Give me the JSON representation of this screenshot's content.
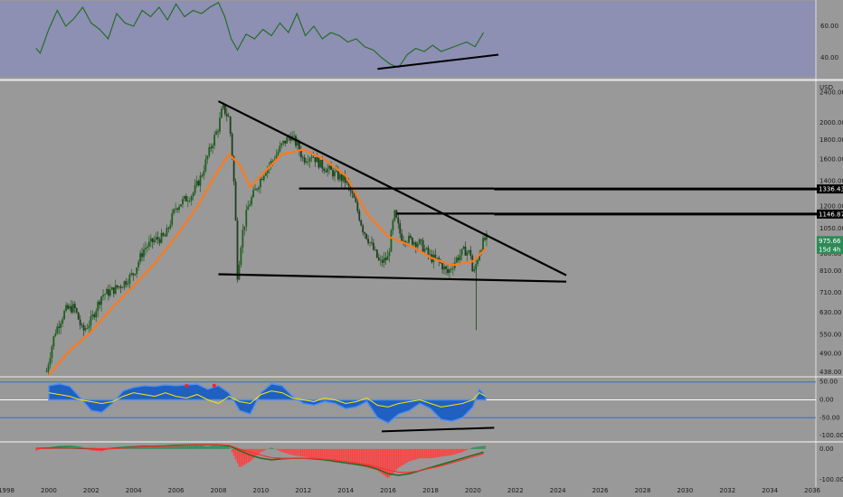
{
  "chart_data": [
    {
      "type": "line",
      "panel": "rsi",
      "y_ticks": [
        "60.00",
        "40.00"
      ],
      "ylim": [
        28,
        76
      ],
      "line_color": "#1f6b1f",
      "background": "#8d8fb3",
      "series": [
        {
          "x": [
            1999.4,
            1999.6,
            2000.0,
            2000.4,
            2000.8,
            2001.2,
            2001.6,
            2002.0,
            2002.4,
            2002.8,
            2003.2,
            2003.6,
            2004.0,
            2004.4,
            2004.8,
            2005.2,
            2005.6,
            2006.0,
            2006.4,
            2006.8,
            2007.2,
            2007.6,
            2008.0,
            2008.3,
            2008.6,
            2008.9,
            2009.3,
            2009.7,
            2010.1,
            2010.5,
            2010.9,
            2011.3,
            2011.7,
            2012.1,
            2012.5,
            2012.9,
            2013.3,
            2013.7,
            2014.1,
            2014.5,
            2014.9,
            2015.3,
            2015.7,
            2016.1,
            2016.5,
            2016.9,
            2017.3,
            2017.7,
            2018.1,
            2018.5,
            2018.9,
            2019.3,
            2019.7,
            2020.1,
            2020.5
          ],
          "y": [
            46,
            43,
            58,
            70,
            60,
            65,
            72,
            62,
            58,
            52,
            68,
            62,
            60,
            70,
            66,
            72,
            64,
            74,
            66,
            70,
            68,
            72,
            75,
            66,
            52,
            45,
            55,
            52,
            58,
            54,
            62,
            56,
            68,
            54,
            60,
            52,
            56,
            54,
            50,
            52,
            47,
            45,
            40,
            36,
            34,
            42,
            46,
            44,
            48,
            44,
            46,
            48,
            50,
            47,
            56
          ]
        }
      ],
      "trendline": {
        "x": [
          2015.5,
          2021.2
        ],
        "y": [
          33,
          42
        ]
      }
    },
    {
      "type": "candlestick",
      "panel": "price",
      "currency": "USD",
      "y_ticks": [
        "2400.00",
        "2000.00",
        "1800.00",
        "1600.00",
        "1400.00",
        "1200.00",
        "1050.00",
        "900.00",
        "810.00",
        "710.00",
        "630.00",
        "550.00",
        "490.00",
        "438.00"
      ],
      "log_scale": true,
      "ylim": [
        428,
        2560
      ],
      "price_labels": [
        {
          "text": "1336.43",
          "value": 1336.43,
          "bg": "#000000",
          "fg": "#ffffff"
        },
        {
          "text": "1146.87",
          "value": 1146.87,
          "bg": "#000000",
          "fg": "#ffffff"
        },
        {
          "text": "975.66",
          "value": 975.66,
          "bg": "#2e8b57",
          "fg": "#ffffff"
        },
        {
          "text": "15d 4h",
          "value": 925,
          "bg": "#2e8b57",
          "fg": "#ffffff"
        }
      ],
      "moving_average_color": "#ff7a1a",
      "up_color": "#1f5f1f",
      "down_color": "#1f3f1f",
      "close_anchors": {
        "x": [
          1999.9,
          2000.3,
          2000.8,
          2001.2,
          2001.6,
          2002.0,
          2002.5,
          2003.0,
          2003.5,
          2004.0,
          2004.5,
          2005.0,
          2005.5,
          2006.0,
          2006.4,
          2006.8,
          2007.2,
          2007.6,
          2008.0,
          2008.2,
          2008.5,
          2008.7,
          2008.9,
          2009.1,
          2009.4,
          2009.8,
          2010.2,
          2010.6,
          2011.0,
          2011.4,
          2011.7,
          2012.0,
          2012.4,
          2012.8,
          2013.2,
          2013.6,
          2014.0,
          2014.4,
          2014.8,
          2015.2,
          2015.6,
          2016.0,
          2016.3,
          2016.6,
          2017.0,
          2017.5,
          2018.0,
          2018.4,
          2018.8,
          2019.2,
          2019.6,
          2019.9,
          2020.0,
          2020.2,
          2020.4,
          2020.6
        ],
        "y": [
          440,
          560,
          640,
          650,
          560,
          600,
          700,
          720,
          750,
          800,
          930,
          980,
          1000,
          1200,
          1250,
          1300,
          1450,
          1700,
          1950,
          2200,
          2050,
          1500,
          780,
          1000,
          1200,
          1350,
          1500,
          1600,
          1750,
          1850,
          1750,
          1600,
          1650,
          1550,
          1500,
          1450,
          1400,
          1250,
          1050,
          950,
          850,
          880,
          1150,
          1000,
          980,
          960,
          880,
          860,
          800,
          870,
          920,
          900,
          780,
          870,
          950,
          990
        ]
      },
      "moving_average": {
        "x": [
          2000.0,
          2001.0,
          2002.0,
          2003.0,
          2004.0,
          2005.0,
          2006.0,
          2007.0,
          2008.0,
          2008.5,
          2009.0,
          2009.5,
          2010.0,
          2011.0,
          2012.0,
          2013.0,
          2014.0,
          2015.0,
          2016.0,
          2017.0,
          2018.0,
          2019.0,
          2020.0,
          2020.6
        ],
        "y": [
          430,
          500,
          560,
          650,
          740,
          850,
          1000,
          1200,
          1500,
          1650,
          1550,
          1350,
          1450,
          1650,
          1700,
          1600,
          1450,
          1150,
          1000,
          950,
          880,
          840,
          860,
          930
        ]
      },
      "trendlines": [
        {
          "x": [
            2008.0,
            2024.4
          ],
          "y": [
            2280,
            790
          ]
        },
        {
          "x": [
            2008.0,
            2024.4
          ],
          "y": [
            795,
            760
          ]
        },
        {
          "x": [
            2011.8,
            2021.0
          ],
          "y": [
            1340,
            1340
          ]
        },
        {
          "x": [
            2016.4,
            2021.0
          ],
          "y": [
            1150,
            1150
          ]
        }
      ],
      "horizontal_lines": [
        {
          "y": 1336.43,
          "x_start": 2021.0
        },
        {
          "y": 1146.87,
          "x_start": 2021.0
        }
      ]
    },
    {
      "type": "area",
      "panel": "oscillator",
      "y_ticks": [
        "50.00",
        "0.00",
        "-50.00",
        "-100.00"
      ],
      "ylim": [
        -115,
        62
      ],
      "fill_color": "#2060c0",
      "line_color": "#ffe600",
      "bands": [
        50,
        0,
        -50
      ],
      "x": [
        2000.0,
        2000.5,
        2001.0,
        2001.5,
        2002.0,
        2002.5,
        2003.0,
        2003.5,
        2004.0,
        2004.5,
        2005.0,
        2005.5,
        2006.0,
        2006.5,
        2007.0,
        2007.5,
        2008.0,
        2008.5,
        2009.0,
        2009.5,
        2010.0,
        2010.5,
        2011.0,
        2011.5,
        2012.0,
        2012.5,
        2013.0,
        2013.5,
        2014.0,
        2014.5,
        2015.0,
        2015.5,
        2016.0,
        2016.5,
        2017.0,
        2017.5,
        2018.0,
        2018.5,
        2019.0,
        2019.5,
        2020.0,
        2020.3,
        2020.6
      ],
      "histogram": [
        40,
        45,
        38,
        5,
        -30,
        -35,
        -10,
        25,
        35,
        40,
        38,
        42,
        40,
        42,
        44,
        30,
        40,
        20,
        -30,
        -40,
        20,
        45,
        40,
        10,
        -10,
        -15,
        -5,
        -10,
        -25,
        -20,
        -5,
        -50,
        -65,
        -40,
        -30,
        -10,
        -25,
        -55,
        -60,
        -50,
        -20,
        30,
        10
      ],
      "signal": [
        20,
        15,
        10,
        0,
        -5,
        -10,
        -5,
        10,
        20,
        15,
        10,
        20,
        10,
        5,
        15,
        0,
        -10,
        10,
        -5,
        -10,
        15,
        25,
        20,
        5,
        0,
        -5,
        5,
        0,
        -10,
        -5,
        5,
        -15,
        -20,
        -10,
        -5,
        0,
        -10,
        -20,
        -15,
        -10,
        0,
        20,
        10
      ],
      "markers": [
        {
          "x": 2006.5,
          "y": 40,
          "color": "#ff2020"
        },
        {
          "x": 2007.8,
          "y": 40,
          "color": "#ff2020"
        }
      ],
      "trendline": {
        "x": [
          2015.7,
          2021.0
        ],
        "y": [
          -88,
          -78
        ]
      }
    },
    {
      "type": "bar",
      "panel": "macd",
      "y_ticks": [
        "0.00",
        "-100.00"
      ],
      "ylim": [
        -120,
        20
      ],
      "up_color": "#2e8b57",
      "down_color": "#ff4040",
      "x": [
        1999.4,
        2000.0,
        2000.5,
        2001.0,
        2001.5,
        2002.0,
        2002.5,
        2003.0,
        2003.5,
        2004.0,
        2004.5,
        2005.0,
        2005.5,
        2006.0,
        2006.5,
        2007.0,
        2007.5,
        2008.0,
        2008.5,
        2009.0,
        2009.5,
        2010.0,
        2010.5,
        2011.0,
        2011.5,
        2012.0,
        2012.5,
        2013.0,
        2013.5,
        2014.0,
        2014.5,
        2015.0,
        2015.5,
        2016.0,
        2016.5,
        2017.0,
        2017.5,
        2018.0,
        2018.5,
        2019.0,
        2019.5,
        2020.0,
        2020.5
      ],
      "values": [
        -5,
        5,
        10,
        12,
        8,
        -5,
        -8,
        5,
        8,
        10,
        12,
        10,
        8,
        12,
        10,
        14,
        8,
        15,
        10,
        -60,
        -40,
        -10,
        5,
        -10,
        -20,
        -25,
        -30,
        -35,
        -40,
        -40,
        -50,
        -60,
        -70,
        -95,
        -60,
        -40,
        -30,
        -30,
        -25,
        -20,
        -10,
        5,
        10
      ],
      "macd_line": [
        2,
        3,
        5,
        4,
        2,
        1,
        0,
        2,
        4,
        6,
        8,
        9,
        10,
        12,
        13,
        14,
        14,
        14,
        10,
        -5,
        -20,
        -30,
        -35,
        -32,
        -30,
        -30,
        -32,
        -35,
        -40,
        -45,
        -50,
        -55,
        -65,
        -80,
        -85,
        -80,
        -70,
        -60,
        -50,
        -40,
        -30,
        -20,
        -10
      ],
      "signal_line": [
        1,
        2,
        3,
        4,
        3,
        2,
        1,
        1,
        3,
        5,
        7,
        8,
        9,
        10,
        12,
        13,
        13,
        14,
        12,
        0,
        -10,
        -20,
        -28,
        -30,
        -30,
        -30,
        -30,
        -33,
        -36,
        -40,
        -45,
        -50,
        -58,
        -68,
        -75,
        -75,
        -70,
        -62,
        -55,
        -45,
        -35,
        -25,
        -15
      ]
    }
  ],
  "x_axis": {
    "years": [
      "1998",
      "2000",
      "2002",
      "2004",
      "2006",
      "2008",
      "2010",
      "2012",
      "2014",
      "2016",
      "2018",
      "2020",
      "2022",
      "2024",
      "2026",
      "2028",
      "2030",
      "2032",
      "2034",
      "2036"
    ]
  }
}
